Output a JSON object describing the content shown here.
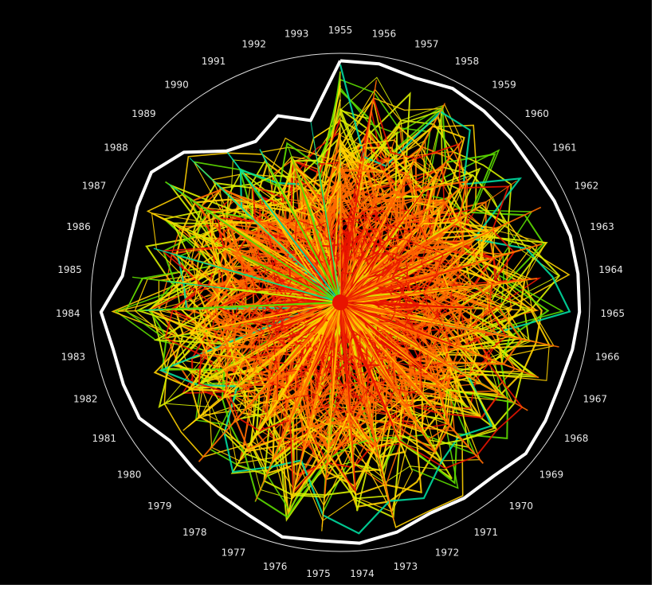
{
  "chart_data": {
    "type": "radial-line",
    "title": "",
    "year_labels": [
      "1955",
      "1956",
      "1957",
      "1958",
      "1959",
      "1960",
      "1961",
      "1962",
      "1963",
      "1964",
      "1965",
      "1966",
      "1967",
      "1968",
      "1969",
      "1970",
      "1971",
      "1972",
      "1973",
      "1974",
      "1975",
      "1976",
      "1977",
      "1978",
      "1979",
      "1980",
      "1981",
      "1982",
      "1983",
      "1984",
      "1985",
      "1986",
      "1987",
      "1988",
      "1989",
      "1990",
      "1991",
      "1992",
      "1993"
    ],
    "radial_range": [
      0,
      1
    ],
    "grid": "outer circle only",
    "legend": "none",
    "color_scale": [
      "#e81400",
      "#ff6a00",
      "#ffd000",
      "#d8f000",
      "#5cdc00",
      "#00dca0",
      "#00d8ff",
      "#1a7cff",
      "#1a2cd0"
    ],
    "envelope_color": "#ffffff",
    "envelope_values": [
      0.97,
      0.97,
      0.95,
      0.97,
      0.96,
      0.95,
      0.94,
      0.95,
      0.96,
      0.96,
      0.96,
      0.95,
      0.94,
      0.95,
      0.96,
      0.93,
      0.93,
      0.92,
      0.95,
      0.97,
      0.96,
      0.97,
      0.93,
      0.91,
      0.89,
      0.88,
      0.93,
      0.93,
      0.93,
      0.96,
      0.88,
      0.88,
      0.9,
      0.92,
      0.87,
      0.76,
      0.73,
      0.79,
      0.74
    ]
  }
}
